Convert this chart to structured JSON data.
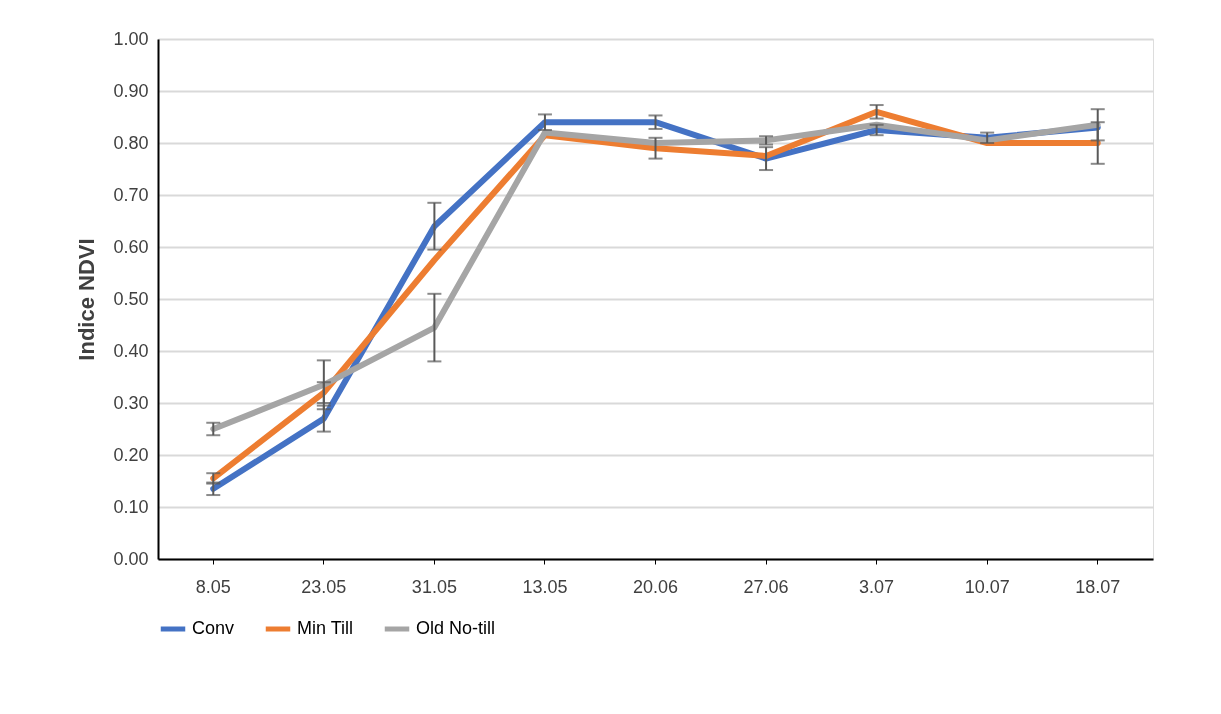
{
  "chart_data": {
    "type": "line",
    "ylabel": "Indice NDVI",
    "categories": [
      "8.05",
      "23.05",
      "31.05",
      "13.05",
      "20.06",
      "27.06",
      "3.07",
      "10.07",
      "18.07"
    ],
    "series": [
      {
        "name": "Conv",
        "color": "#4472c4",
        "values": [
          0.135,
          0.27,
          0.64,
          0.84,
          0.84,
          0.77,
          0.825,
          0.81,
          0.83
        ],
        "errors": [
          0.012,
          0.025,
          0.045,
          0.015,
          0.013,
          0.022,
          0.01,
          0.01,
          null
        ]
      },
      {
        "name": "Min Till",
        "color": "#ed7d31",
        "values": [
          0.155,
          0.32,
          0.575,
          0.815,
          0.79,
          0.775,
          0.86,
          0.8,
          0.8
        ],
        "errors": [
          0.01,
          0.02,
          null,
          null,
          0.02,
          null,
          0.013,
          null,
          0.04
        ]
      },
      {
        "name": "Old No-till",
        "color": "#a5a5a5",
        "values": [
          0.25,
          0.335,
          0.445,
          0.82,
          0.8,
          0.805,
          0.835,
          0.805,
          0.835
        ],
        "errors": [
          0.012,
          0.047,
          0.065,
          null,
          null,
          0.008,
          null,
          null,
          0.03
        ]
      }
    ],
    "ylim": [
      0,
      1
    ],
    "yticks": [
      {
        "value": 0,
        "label": "0.00"
      },
      {
        "value": 0.1,
        "label": "0.10"
      },
      {
        "value": 0.2,
        "label": "0.20"
      },
      {
        "value": 0.3,
        "label": "0.30"
      },
      {
        "value": 0.4,
        "label": "0.40"
      },
      {
        "value": 0.5,
        "label": "0.50"
      },
      {
        "value": 0.6,
        "label": "0.60"
      },
      {
        "value": 0.7,
        "label": "0.70"
      },
      {
        "value": 0.8,
        "label": "0.80"
      },
      {
        "value": 0.9,
        "label": "0.90"
      },
      {
        "value": 1.0,
        "label": "1.00"
      }
    ],
    "grid": "y",
    "legend": "bottom",
    "marker": "none",
    "line_style": "solid"
  }
}
